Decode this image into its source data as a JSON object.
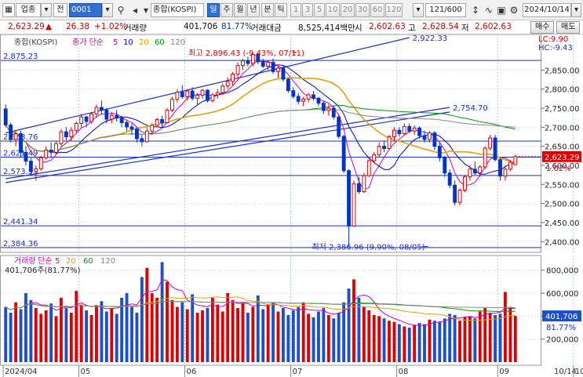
{
  "toolbar": {
    "market": "업종",
    "code_label": "전",
    "code": "0001",
    "name": "종합(KOSPI)",
    "periods": [
      "일",
      "주",
      "월",
      "년",
      "분",
      "틱"
    ],
    "intervals": [
      "1",
      "3",
      "5",
      "10",
      "20",
      "30",
      "60",
      "120"
    ],
    "count": "121/600",
    "date": "2024/10/14"
  },
  "infobar": {
    "price": "2,623.29",
    "arrow": "▲",
    "change": "26.38",
    "change_pct": "+1.02%",
    "volume_label": "거래량",
    "volume": "401,706",
    "volume_ratio": "81.77%",
    "amount_label": "거래대금",
    "amount": "8,525,414백만",
    "open_label": "시",
    "open": "2,602.63",
    "high_label": "고",
    "high": "2,628.54",
    "low_label": "저",
    "low": "2,602.63",
    "buy_label": "매수",
    "sell_label": "매도"
  },
  "chart_data": [
    {
      "type": "candlestick",
      "title": "종합(KOSPI)",
      "legend": [
        {
          "name": "종가 단순",
          "color": "#cc00cc"
        },
        {
          "name": "5",
          "color": "#cc00cc"
        },
        {
          "name": "10",
          "color": "#0000cc"
        },
        {
          "name": "20",
          "color": "#e8a200"
        },
        {
          "name": "60",
          "color": "#009900"
        },
        {
          "name": "120",
          "color": "#888888"
        }
      ],
      "ylim": [
        2380,
        2935
      ],
      "yticks": [
        2400,
        2450,
        2500,
        2550,
        2600,
        2650,
        2700,
        2750,
        2800,
        2850
      ],
      "x_labels": [
        "2024/04",
        "05",
        "06",
        "07",
        "08",
        "09",
        "10"
      ],
      "last_price": "2,623.29",
      "last_price_pct": "1.02%",
      "lc_label": "LC:9.90",
      "hc_label": "HC:-9.43",
      "h_lines": [
        {
          "value": 2875.23,
          "label": "2,875.23"
        },
        {
          "value": 2663.76,
          "label": "2,663.76"
        },
        {
          "value": 2621.49,
          "label": "2,621.49"
        },
        {
          "value": 2573.53,
          "label": "2,573.53"
        },
        {
          "value": 2441.34,
          "label": "2,441.34"
        },
        {
          "value": 2384.36,
          "label": "2,384.36"
        }
      ],
      "trendlines": [
        {
          "from": [
            0,
            2685
          ],
          "to": [
            80,
            2935
          ],
          "label": "2,922.33"
        },
        {
          "from": [
            0,
            2565
          ],
          "to": [
            88,
            2752
          ],
          "label": "2,754.70"
        },
        {
          "from": [
            0,
            2555
          ],
          "to": [
            88,
            2740
          ],
          "label": ""
        }
      ],
      "annotations": [
        {
          "text": "최고 2,896.43 (-9.43%, 07/11)",
          "x": 58,
          "y": 2896.43
        },
        {
          "text": "최저 2,386.96 (9.90%, 08/05)",
          "x": 84,
          "y": 2386.96
        }
      ],
      "ohlc": [
        [
          2748,
          2760,
          2700,
          2706
        ],
        [
          2706,
          2712,
          2660,
          2668
        ],
        [
          2668,
          2690,
          2650,
          2683
        ],
        [
          2683,
          2690,
          2620,
          2634
        ],
        [
          2634,
          2650,
          2600,
          2611
        ],
        [
          2611,
          2620,
          2575,
          2584
        ],
        [
          2584,
          2600,
          2560,
          2591
        ],
        [
          2591,
          2625,
          2585,
          2620
        ],
        [
          2620,
          2650,
          2615,
          2640
        ],
        [
          2640,
          2660,
          2620,
          2634
        ],
        [
          2634,
          2665,
          2630,
          2657
        ],
        [
          2657,
          2695,
          2650,
          2688
        ],
        [
          2688,
          2700,
          2665,
          2675
        ],
        [
          2675,
          2700,
          2665,
          2692
        ],
        [
          2692,
          2715,
          2685,
          2710
        ],
        [
          2710,
          2735,
          2700,
          2727
        ],
        [
          2727,
          2730,
          2700,
          2715
        ],
        [
          2715,
          2740,
          2710,
          2735
        ],
        [
          2735,
          2760,
          2725,
          2752
        ],
        [
          2752,
          2770,
          2735,
          2745
        ],
        [
          2745,
          2750,
          2710,
          2721
        ],
        [
          2721,
          2740,
          2710,
          2731
        ],
        [
          2731,
          2745,
          2715,
          2724
        ],
        [
          2724,
          2730,
          2700,
          2712
        ],
        [
          2712,
          2720,
          2690,
          2701
        ],
        [
          2701,
          2710,
          2680,
          2695
        ],
        [
          2695,
          2700,
          2660,
          2670
        ],
        [
          2670,
          2680,
          2650,
          2662
        ],
        [
          2662,
          2700,
          2660,
          2690
        ],
        [
          2690,
          2710,
          2680,
          2705
        ],
        [
          2705,
          2725,
          2700,
          2720
        ],
        [
          2720,
          2730,
          2700,
          2712
        ],
        [
          2712,
          2750,
          2710,
          2745
        ],
        [
          2745,
          2780,
          2740,
          2773
        ],
        [
          2773,
          2800,
          2765,
          2792
        ],
        [
          2792,
          2810,
          2775,
          2780
        ],
        [
          2780,
          2800,
          2770,
          2795
        ],
        [
          2795,
          2805,
          2770,
          2776
        ],
        [
          2776,
          2790,
          2760,
          2784
        ],
        [
          2784,
          2800,
          2775,
          2797
        ],
        [
          2797,
          2800,
          2765,
          2770
        ],
        [
          2770,
          2790,
          2765,
          2785
        ],
        [
          2785,
          2800,
          2775,
          2791
        ],
        [
          2791,
          2815,
          2785,
          2808
        ],
        [
          2808,
          2830,
          2800,
          2820
        ],
        [
          2820,
          2845,
          2810,
          2839
        ],
        [
          2839,
          2870,
          2830,
          2862
        ],
        [
          2862,
          2880,
          2850,
          2874
        ],
        [
          2874,
          2885,
          2860,
          2867
        ],
        [
          2867,
          2896,
          2860,
          2891
        ],
        [
          2891,
          2895,
          2865,
          2872
        ],
        [
          2872,
          2880,
          2855,
          2860
        ],
        [
          2860,
          2875,
          2850,
          2870
        ],
        [
          2870,
          2880,
          2840,
          2846
        ],
        [
          2846,
          2860,
          2830,
          2855
        ],
        [
          2855,
          2860,
          2820,
          2826
        ],
        [
          2826,
          2830,
          2790,
          2796
        ],
        [
          2796,
          2805,
          2775,
          2781
        ],
        [
          2781,
          2790,
          2760,
          2768
        ],
        [
          2768,
          2780,
          2755,
          2774
        ],
        [
          2774,
          2790,
          2765,
          2785
        ],
        [
          2785,
          2795,
          2770,
          2776
        ],
        [
          2776,
          2780,
          2755,
          2763
        ],
        [
          2763,
          2770,
          2735,
          2744
        ],
        [
          2744,
          2760,
          2730,
          2750
        ],
        [
          2750,
          2756,
          2720,
          2727
        ],
        [
          2727,
          2735,
          2670,
          2676
        ],
        [
          2676,
          2680,
          2580,
          2586
        ],
        [
          2586,
          2590,
          2386,
          2441
        ],
        [
          2441,
          2560,
          2440,
          2552
        ],
        [
          2552,
          2570,
          2525,
          2531
        ],
        [
          2531,
          2580,
          2528,
          2573
        ],
        [
          2573,
          2620,
          2570,
          2612
        ],
        [
          2612,
          2635,
          2605,
          2628
        ],
        [
          2628,
          2660,
          2620,
          2650
        ],
        [
          2650,
          2665,
          2635,
          2644
        ],
        [
          2644,
          2680,
          2640,
          2675
        ],
        [
          2675,
          2700,
          2665,
          2692
        ],
        [
          2692,
          2700,
          2675,
          2683
        ],
        [
          2683,
          2710,
          2680,
          2702
        ],
        [
          2702,
          2710,
          2685,
          2690
        ],
        [
          2690,
          2705,
          2680,
          2698
        ],
        [
          2698,
          2702,
          2670,
          2678
        ],
        [
          2678,
          2690,
          2660,
          2668
        ],
        [
          2668,
          2690,
          2660,
          2685
        ],
        [
          2685,
          2690,
          2640,
          2650
        ],
        [
          2650,
          2660,
          2610,
          2620
        ],
        [
          2620,
          2625,
          2570,
          2580
        ],
        [
          2580,
          2590,
          2540,
          2548
        ],
        [
          2548,
          2560,
          2495,
          2503
        ],
        [
          2503,
          2540,
          2495,
          2535
        ],
        [
          2535,
          2575,
          2530,
          2570
        ],
        [
          2570,
          2600,
          2560,
          2590
        ],
        [
          2590,
          2610,
          2575,
          2580
        ],
        [
          2580,
          2600,
          2570,
          2596
        ],
        [
          2596,
          2650,
          2590,
          2645
        ],
        [
          2645,
          2680,
          2640,
          2672
        ],
        [
          2672,
          2680,
          2610,
          2615
        ],
        [
          2615,
          2620,
          2560,
          2572
        ],
        [
          2572,
          2600,
          2560,
          2590
        ],
        [
          2590,
          2615,
          2585,
          2608
        ],
        [
          2602,
          2629,
          2602,
          2623
        ]
      ]
    },
    {
      "type": "bar",
      "title": "거래량",
      "legend": [
        {
          "name": "거래량",
          "color": "#cc00cc"
        },
        {
          "name": "단순",
          "color": "#cc00cc"
        },
        {
          "name": "5",
          "color": "#cc00cc"
        },
        {
          "name": "20",
          "color": "#e8a200"
        },
        {
          "name": "60",
          "color": "#009900"
        },
        {
          "name": "120",
          "color": "#888888"
        }
      ],
      "subtitle": "401,706주(81.77%)",
      "ylim": [
        0,
        900000
      ],
      "yticks": [
        200000,
        400000,
        600000,
        800000
      ],
      "ytick_labels": [
        "200,000",
        "400,000",
        "600,000",
        "800,000"
      ],
      "last_value": "401,706",
      "last_ratio": "81.77%",
      "values": [
        480000,
        430000,
        520000,
        460000,
        600000,
        540000,
        470000,
        420000,
        450000,
        510000,
        400000,
        560000,
        470000,
        430000,
        620000,
        500000,
        450000,
        410000,
        490000,
        530000,
        440000,
        470000,
        420000,
        560000,
        600000,
        480000,
        430000,
        740000,
        820000,
        600000,
        560000,
        870000,
        700000,
        540000,
        480000,
        520000,
        460000,
        590000,
        430000,
        450000,
        470000,
        560000,
        500000,
        440000,
        600000,
        540000,
        470000,
        510000,
        430000,
        480000,
        580000,
        460000,
        500000,
        520000,
        440000,
        470000,
        410000,
        450000,
        480000,
        520000,
        420000,
        390000,
        440000,
        470000,
        410000,
        380000,
        430000,
        520000,
        640000,
        720000,
        560000,
        480000,
        450000,
        410000,
        400000,
        380000,
        360000,
        350000,
        330000,
        310000,
        300000,
        320000,
        340000,
        330000,
        370000,
        360000,
        350000,
        380000,
        420000,
        410000,
        360000,
        390000,
        400000,
        380000,
        440000,
        470000,
        430000,
        410000,
        420000,
        610000,
        480000,
        401706
      ]
    }
  ]
}
